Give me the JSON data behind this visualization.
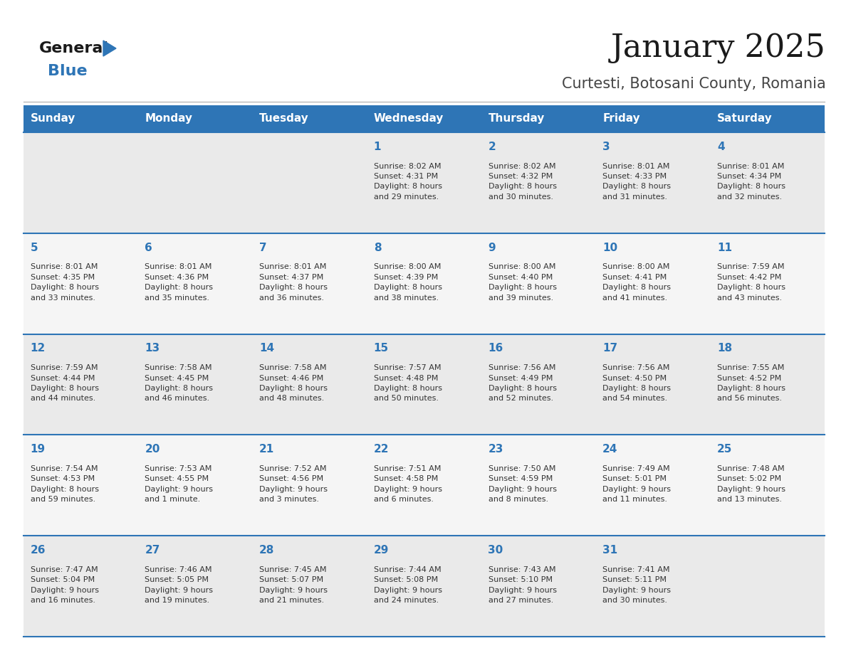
{
  "title": "January 2025",
  "subtitle": "Curtesti, Botosani County, Romania",
  "header_bg": "#2E75B6",
  "header_text_color": "#FFFFFF",
  "cell_bg_odd": "#EAEAEA",
  "cell_bg_even": "#F5F5F5",
  "day_number_color": "#2E75B6",
  "info_text_color": "#333333",
  "border_color": "#2E75B6",
  "sep_line_color": "#AAAAAA",
  "days_of_week": [
    "Sunday",
    "Monday",
    "Tuesday",
    "Wednesday",
    "Thursday",
    "Friday",
    "Saturday"
  ],
  "weeks": [
    [
      {
        "day": "",
        "info": ""
      },
      {
        "day": "",
        "info": ""
      },
      {
        "day": "",
        "info": ""
      },
      {
        "day": "1",
        "info": "Sunrise: 8:02 AM\nSunset: 4:31 PM\nDaylight: 8 hours\nand 29 minutes."
      },
      {
        "day": "2",
        "info": "Sunrise: 8:02 AM\nSunset: 4:32 PM\nDaylight: 8 hours\nand 30 minutes."
      },
      {
        "day": "3",
        "info": "Sunrise: 8:01 AM\nSunset: 4:33 PM\nDaylight: 8 hours\nand 31 minutes."
      },
      {
        "day": "4",
        "info": "Sunrise: 8:01 AM\nSunset: 4:34 PM\nDaylight: 8 hours\nand 32 minutes."
      }
    ],
    [
      {
        "day": "5",
        "info": "Sunrise: 8:01 AM\nSunset: 4:35 PM\nDaylight: 8 hours\nand 33 minutes."
      },
      {
        "day": "6",
        "info": "Sunrise: 8:01 AM\nSunset: 4:36 PM\nDaylight: 8 hours\nand 35 minutes."
      },
      {
        "day": "7",
        "info": "Sunrise: 8:01 AM\nSunset: 4:37 PM\nDaylight: 8 hours\nand 36 minutes."
      },
      {
        "day": "8",
        "info": "Sunrise: 8:00 AM\nSunset: 4:39 PM\nDaylight: 8 hours\nand 38 minutes."
      },
      {
        "day": "9",
        "info": "Sunrise: 8:00 AM\nSunset: 4:40 PM\nDaylight: 8 hours\nand 39 minutes."
      },
      {
        "day": "10",
        "info": "Sunrise: 8:00 AM\nSunset: 4:41 PM\nDaylight: 8 hours\nand 41 minutes."
      },
      {
        "day": "11",
        "info": "Sunrise: 7:59 AM\nSunset: 4:42 PM\nDaylight: 8 hours\nand 43 minutes."
      }
    ],
    [
      {
        "day": "12",
        "info": "Sunrise: 7:59 AM\nSunset: 4:44 PM\nDaylight: 8 hours\nand 44 minutes."
      },
      {
        "day": "13",
        "info": "Sunrise: 7:58 AM\nSunset: 4:45 PM\nDaylight: 8 hours\nand 46 minutes."
      },
      {
        "day": "14",
        "info": "Sunrise: 7:58 AM\nSunset: 4:46 PM\nDaylight: 8 hours\nand 48 minutes."
      },
      {
        "day": "15",
        "info": "Sunrise: 7:57 AM\nSunset: 4:48 PM\nDaylight: 8 hours\nand 50 minutes."
      },
      {
        "day": "16",
        "info": "Sunrise: 7:56 AM\nSunset: 4:49 PM\nDaylight: 8 hours\nand 52 minutes."
      },
      {
        "day": "17",
        "info": "Sunrise: 7:56 AM\nSunset: 4:50 PM\nDaylight: 8 hours\nand 54 minutes."
      },
      {
        "day": "18",
        "info": "Sunrise: 7:55 AM\nSunset: 4:52 PM\nDaylight: 8 hours\nand 56 minutes."
      }
    ],
    [
      {
        "day": "19",
        "info": "Sunrise: 7:54 AM\nSunset: 4:53 PM\nDaylight: 8 hours\nand 59 minutes."
      },
      {
        "day": "20",
        "info": "Sunrise: 7:53 AM\nSunset: 4:55 PM\nDaylight: 9 hours\nand 1 minute."
      },
      {
        "day": "21",
        "info": "Sunrise: 7:52 AM\nSunset: 4:56 PM\nDaylight: 9 hours\nand 3 minutes."
      },
      {
        "day": "22",
        "info": "Sunrise: 7:51 AM\nSunset: 4:58 PM\nDaylight: 9 hours\nand 6 minutes."
      },
      {
        "day": "23",
        "info": "Sunrise: 7:50 AM\nSunset: 4:59 PM\nDaylight: 9 hours\nand 8 minutes."
      },
      {
        "day": "24",
        "info": "Sunrise: 7:49 AM\nSunset: 5:01 PM\nDaylight: 9 hours\nand 11 minutes."
      },
      {
        "day": "25",
        "info": "Sunrise: 7:48 AM\nSunset: 5:02 PM\nDaylight: 9 hours\nand 13 minutes."
      }
    ],
    [
      {
        "day": "26",
        "info": "Sunrise: 7:47 AM\nSunset: 5:04 PM\nDaylight: 9 hours\nand 16 minutes."
      },
      {
        "day": "27",
        "info": "Sunrise: 7:46 AM\nSunset: 5:05 PM\nDaylight: 9 hours\nand 19 minutes."
      },
      {
        "day": "28",
        "info": "Sunrise: 7:45 AM\nSunset: 5:07 PM\nDaylight: 9 hours\nand 21 minutes."
      },
      {
        "day": "29",
        "info": "Sunrise: 7:44 AM\nSunset: 5:08 PM\nDaylight: 9 hours\nand 24 minutes."
      },
      {
        "day": "30",
        "info": "Sunrise: 7:43 AM\nSunset: 5:10 PM\nDaylight: 9 hours\nand 27 minutes."
      },
      {
        "day": "31",
        "info": "Sunrise: 7:41 AM\nSunset: 5:11 PM\nDaylight: 9 hours\nand 30 minutes."
      },
      {
        "day": "",
        "info": ""
      }
    ]
  ],
  "logo_color_general": "#1a1a1a",
  "logo_color_blue": "#2E75B6",
  "logo_triangle_color": "#2E75B6",
  "title_fontsize": 32,
  "subtitle_fontsize": 15,
  "header_fontsize": 11,
  "day_num_fontsize": 11,
  "info_fontsize": 8,
  "logo_fontsize_general": 16,
  "logo_fontsize_blue": 16
}
